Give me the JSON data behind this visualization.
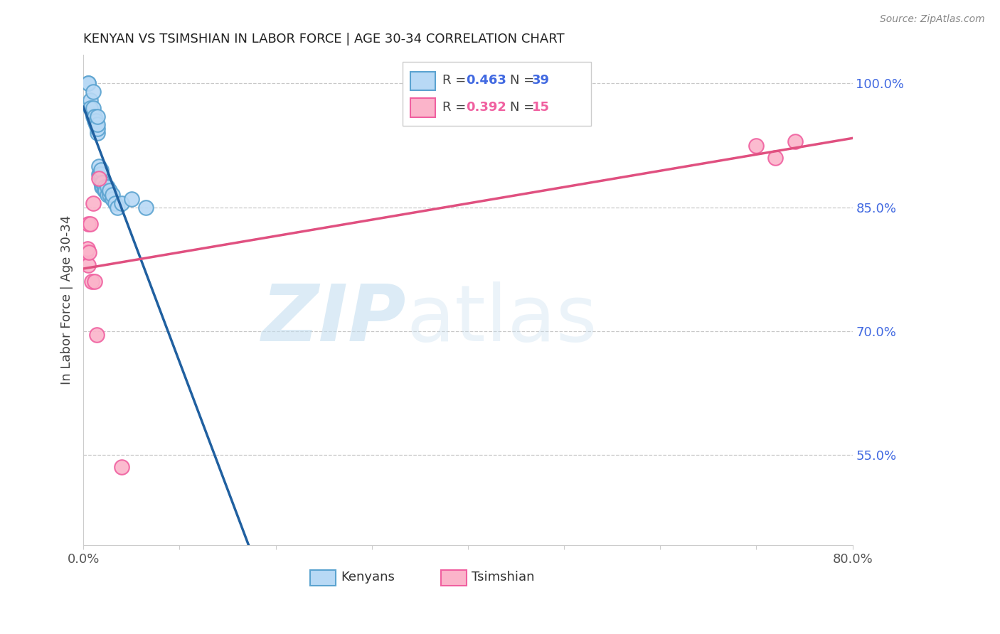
{
  "title": "KENYAN VS TSIMSHIAN IN LABOR FORCE | AGE 30-34 CORRELATION CHART",
  "source": "Source: ZipAtlas.com",
  "ylabel": "In Labor Force | Age 30-34",
  "xmin": 0.0,
  "xmax": 0.8,
  "ymin": 0.44,
  "ymax": 1.035,
  "kenyan_face_color": "#b8d9f5",
  "kenyan_edge_color": "#5ba3d0",
  "tsimshian_face_color": "#fbb4ca",
  "tsimshian_edge_color": "#f060a0",
  "kenyan_line_color": "#2060a0",
  "tsimshian_line_color": "#e05080",
  "yticks": [
    0.55,
    0.7,
    0.85,
    1.0
  ],
  "ytick_labels": [
    "55.0%",
    "70.0%",
    "85.0%",
    "100.0%"
  ],
  "legend_R_kenyan": "0.463",
  "legend_N_kenyan": "39",
  "legend_R_tsimshian": "0.392",
  "legend_N_tsimshian": "15",
  "kenyan_x": [
    0.005,
    0.005,
    0.007,
    0.007,
    0.01,
    0.01,
    0.01,
    0.012,
    0.012,
    0.013,
    0.013,
    0.015,
    0.015,
    0.015,
    0.015,
    0.016,
    0.016,
    0.017,
    0.018,
    0.018,
    0.018,
    0.019,
    0.019,
    0.02,
    0.02,
    0.022,
    0.022,
    0.023,
    0.025,
    0.025,
    0.027,
    0.027,
    0.03,
    0.03,
    0.033,
    0.035,
    0.04,
    0.05,
    0.065
  ],
  "kenyan_y": [
    1.0,
    1.0,
    0.98,
    0.97,
    0.96,
    0.97,
    0.99,
    0.955,
    0.96,
    0.95,
    0.955,
    0.94,
    0.945,
    0.95,
    0.96,
    0.89,
    0.9,
    0.89,
    0.88,
    0.89,
    0.895,
    0.875,
    0.88,
    0.875,
    0.88,
    0.87,
    0.875,
    0.87,
    0.865,
    0.875,
    0.865,
    0.87,
    0.86,
    0.865,
    0.855,
    0.85,
    0.855,
    0.86,
    0.85
  ],
  "tsimshian_x": [
    0.003,
    0.004,
    0.005,
    0.005,
    0.006,
    0.007,
    0.009,
    0.01,
    0.012,
    0.014,
    0.016,
    0.04,
    0.7,
    0.72,
    0.74
  ],
  "tsimshian_y": [
    0.795,
    0.8,
    0.78,
    0.83,
    0.795,
    0.83,
    0.76,
    0.855,
    0.76,
    0.695,
    0.885,
    0.535,
    0.925,
    0.91,
    0.93
  ],
  "watermark_zip": "ZIP",
  "watermark_atlas": "atlas",
  "background_color": "#ffffff",
  "grid_color": "#c8c8c8",
  "title_color": "#222222",
  "axis_label_color": "#444444",
  "right_tick_color": "#4169e1",
  "source_color": "#888888"
}
